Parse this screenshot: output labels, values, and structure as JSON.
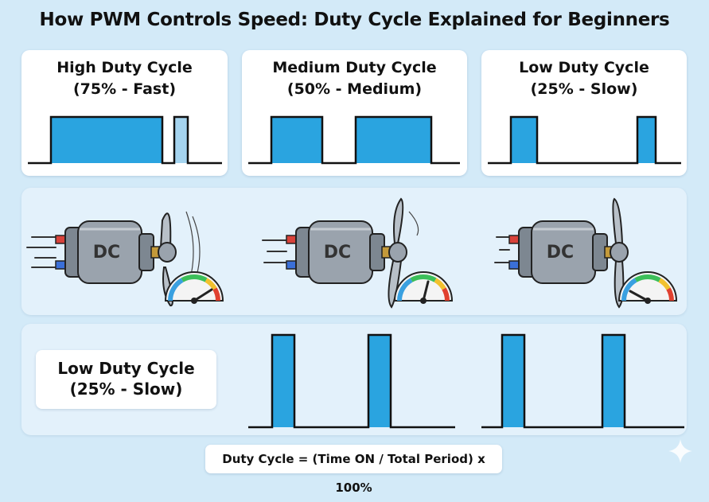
{
  "title": "How PWM Controls Speed: Duty Cycle Explained for Beginners",
  "cards": [
    {
      "heading": "High Duty Cycle",
      "subheading": "(75% - Fast)",
      "duty_percent": 75
    },
    {
      "heading": "Medium Duty Cycle",
      "subheading": "(50% - Medium)",
      "duty_percent": 50
    },
    {
      "heading": "Low Duty Cycle",
      "subheading": "(25% - Slow)",
      "duty_percent": 25
    }
  ],
  "motors": [
    {
      "label": "DC",
      "speed": "fast"
    },
    {
      "label": "DC",
      "speed": "medium"
    },
    {
      "label": "DC",
      "speed": "slow"
    }
  ],
  "bottom": {
    "heading": "Low Duty Cycle",
    "subheading": "(25% - Slow)"
  },
  "formula": "Duty Cycle = (Time ON / Total Period) x 100%",
  "colors": {
    "background": "#d3eaf8",
    "pulse_fill": "#2aa4e0",
    "line": "#111111",
    "motor_body": "#9aa3ad"
  },
  "icons": [
    "dc-motor-icon",
    "propeller-icon",
    "speedometer-icon",
    "sparkle-icon"
  ]
}
